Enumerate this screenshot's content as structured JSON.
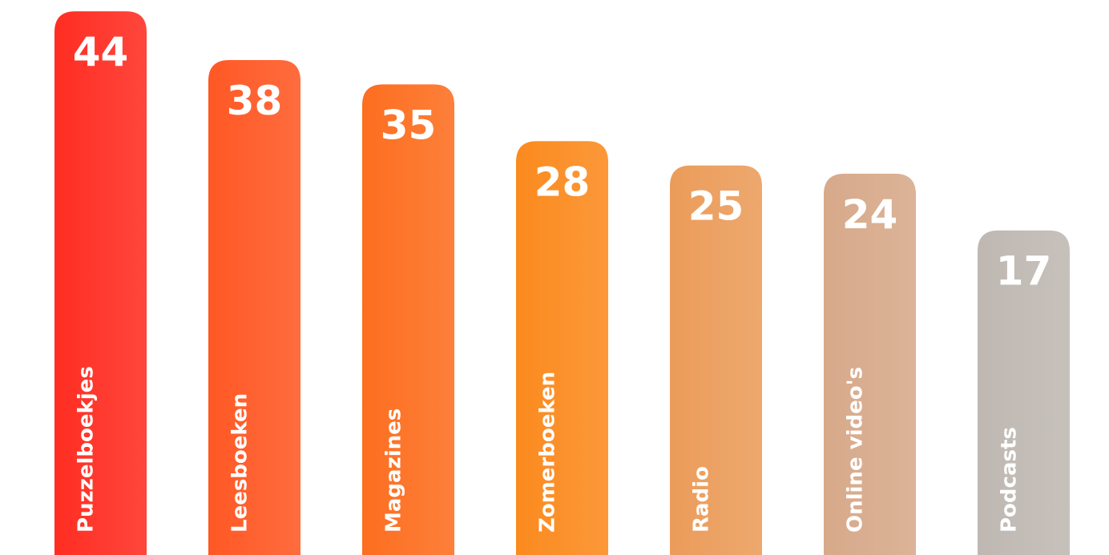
{
  "chart_data": {
    "type": "bar",
    "categories": [
      "Puzzelboekjes",
      "Leesboeken",
      "Magazines",
      "Zomerboeken",
      "Radio",
      "Online video's",
      "Podcasts"
    ],
    "values": [
      44,
      38,
      35,
      28,
      25,
      24,
      17
    ],
    "colors": [
      "#ff2d22",
      "#ff5824",
      "#fd6e1f",
      "#fb8a1e",
      "#eb9c5a",
      "#d7a98a",
      "#bfb8b2"
    ],
    "ylim": [
      -23,
      45.4
    ]
  }
}
